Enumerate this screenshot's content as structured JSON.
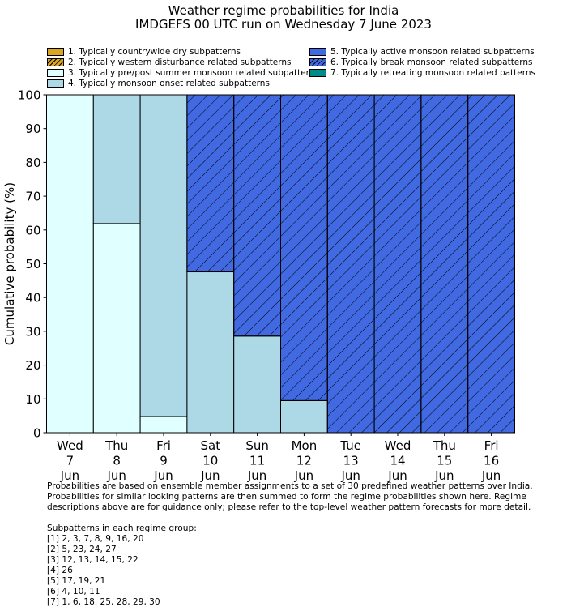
{
  "title_line1": "Weather regime probabilities for India",
  "title_line2": "IMDGEFS 00 UTC run on Wednesday 7 June 2023",
  "colors": {
    "dry": "#DAA520",
    "wd": "#DAA520",
    "prepost": "#E0FFFF",
    "onset": "#ADD8E6",
    "active": "#4169E1",
    "break": "#4169E1",
    "retreat": "#008B8B"
  },
  "chart_data": {
    "type": "bar",
    "stacked": true,
    "title": "Weather regime probabilities for India",
    "ylabel": "Cumulative probability (%)",
    "xlabel": "",
    "ylim": [
      0,
      100
    ],
    "yticks": [
      "0",
      "10",
      "20",
      "30",
      "40",
      "50",
      "60",
      "70",
      "80",
      "90",
      "100"
    ],
    "categories": [
      [
        "Wed",
        "7",
        "Jun"
      ],
      [
        "Thu",
        "8",
        "Jun"
      ],
      [
        "Fri",
        "9",
        "Jun"
      ],
      [
        "Sat",
        "10",
        "Jun"
      ],
      [
        "Sun",
        "11",
        "Jun"
      ],
      [
        "Mon",
        "12",
        "Jun"
      ],
      [
        "Tue",
        "13",
        "Jun"
      ],
      [
        "Wed",
        "14",
        "Jun"
      ],
      [
        "Thu",
        "15",
        "Jun"
      ],
      [
        "Fri",
        "16",
        "Jun"
      ]
    ],
    "legend": [
      {
        "label": "1. Typically countrywide dry subpatterns",
        "key": "dry",
        "hatch": false
      },
      {
        "label": "2. Typically western disturbance related subpatterns",
        "key": "wd",
        "hatch": true
      },
      {
        "label": "3. Typically pre/post summer monsoon related subpatterns",
        "key": "prepost",
        "hatch": false
      },
      {
        "label": "4. Typically monsoon onset related subpatterns",
        "key": "onset",
        "hatch": false
      },
      {
        "label": "5. Typically active monsoon related subpatterns",
        "key": "active",
        "hatch": false
      },
      {
        "label": "6. Typically break monsoon related subpatterns",
        "key": "break",
        "hatch": true
      },
      {
        "label": "7. Typically retreating monsoon related patterns",
        "key": "retreat",
        "hatch": false
      }
    ],
    "series": [
      {
        "name": "1. Typically countrywide dry subpatterns",
        "key": "dry",
        "values": [
          0,
          0,
          0,
          0,
          0,
          0,
          0,
          0,
          0,
          0
        ]
      },
      {
        "name": "2. Typically western disturbance related subpatterns",
        "key": "wd",
        "values": [
          0,
          0,
          0,
          0,
          0,
          0,
          0,
          0,
          0,
          0
        ]
      },
      {
        "name": "3. Typically pre/post summer monsoon related subpatterns",
        "key": "prepost",
        "values": [
          100,
          61.9,
          4.8,
          0,
          0,
          0,
          0,
          0,
          0,
          0
        ]
      },
      {
        "name": "4. Typically monsoon onset related subpatterns",
        "key": "onset",
        "values": [
          0,
          38.1,
          95.2,
          47.6,
          28.6,
          9.5,
          0,
          0,
          0,
          0
        ]
      },
      {
        "name": "5. Typically active monsoon related subpatterns",
        "key": "active",
        "values": [
          0,
          0,
          0,
          0,
          0,
          0,
          0,
          0,
          0,
          0
        ]
      },
      {
        "name": "6. Typically break monsoon related subpatterns",
        "key": "break",
        "values": [
          0,
          0,
          0,
          52.4,
          71.4,
          90.5,
          100,
          100,
          100,
          100
        ]
      },
      {
        "name": "7. Typically retreating monsoon related patterns",
        "key": "retreat",
        "values": [
          0,
          0,
          0,
          0,
          0,
          0,
          0,
          0,
          0,
          0
        ]
      }
    ]
  },
  "notes": [
    "Probabilities are based on ensemble member assignments to a set of 30 predefined weather patterns over India.",
    "Probabilities for similar looking patterns are then summed to form the regime probabilities shown here. Regime",
    "descriptions above are for guidance only; please refer to the top-level weather pattern forecasts for more detail.",
    "",
    "Subpatterns in each regime group:",
    "[1] 2, 3, 7, 8, 9, 16, 20",
    "[2] 5, 23, 24, 27",
    "[3] 12, 13, 14, 15, 22",
    "[4] 26",
    "[5] 17, 19, 21",
    "[6] 4, 10, 11",
    "[7] 1, 6, 18, 25, 28, 29, 30"
  ]
}
